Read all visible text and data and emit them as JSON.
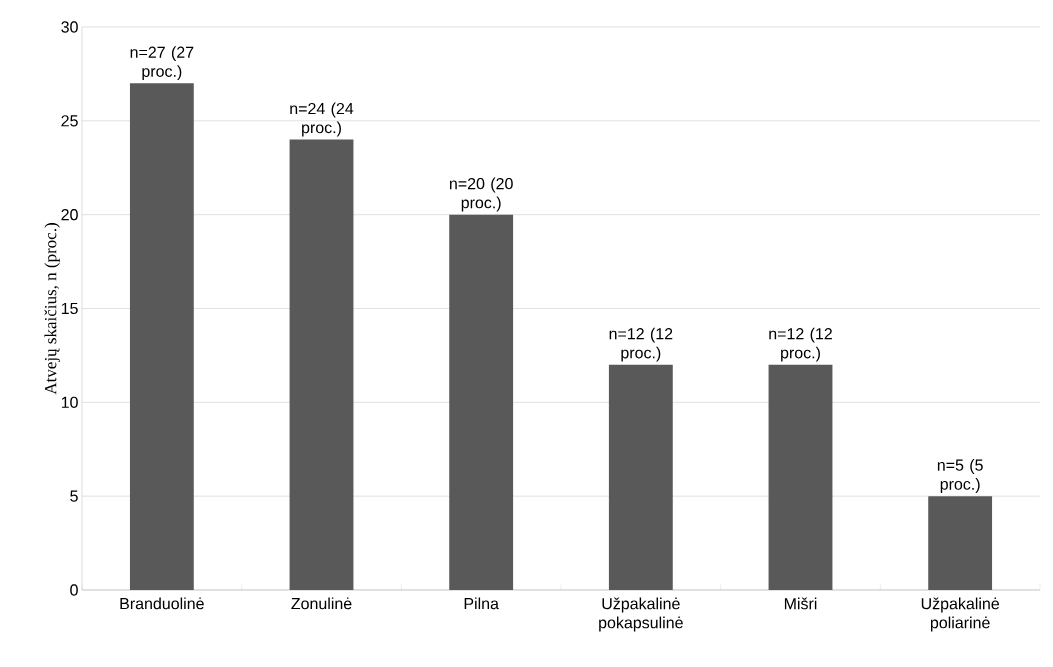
{
  "chart_data": {
    "type": "bar",
    "ylabel": "Atvejų skaičius, n (proc.)",
    "categories": [
      "Branduolinė",
      "Zonulinė",
      "Pilna",
      "Užpakalinė pokapsulinė",
      "Mišri",
      "Užpakalinė poliarinė"
    ],
    "values": [
      27,
      24,
      20,
      12,
      12,
      5
    ],
    "color": "#595959",
    "value_labels": [
      "n=27 (27 proc.)",
      "n=24 (24 proc.)",
      "n=20 (20 proc.)",
      "n=12 (12 proc.)",
      "n=12 (12 proc.)",
      "n=5 (5 proc.)"
    ],
    "ylim": [
      0,
      30
    ],
    "yticks": [
      0,
      5,
      10,
      15,
      20,
      25,
      30
    ],
    "grid": "y"
  }
}
